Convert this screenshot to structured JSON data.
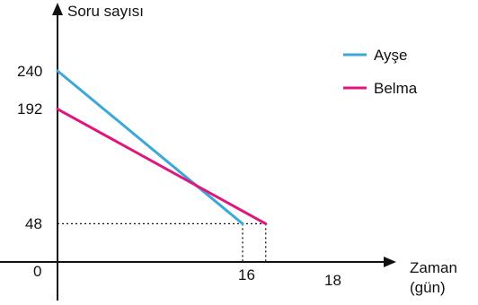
{
  "chart_data": {
    "type": "line",
    "ylabel": "Soru sayısı",
    "xlabel_line1": "Zaman",
    "xlabel_line2": "(gün)",
    "origin_label": "0",
    "y_ticks": [
      "240",
      "192",
      "48"
    ],
    "x_ticks": [
      "16",
      "18"
    ],
    "series": [
      {
        "name": "Ayşe",
        "color": "#3aa8d8",
        "points": [
          [
            0,
            240
          ],
          [
            16,
            48
          ]
        ]
      },
      {
        "name": "Belma",
        "color": "#e0157d",
        "points": [
          [
            0,
            192
          ],
          [
            18,
            48
          ]
        ]
      }
    ],
    "guides": [
      {
        "x": 16,
        "y": 48
      },
      {
        "x": 18,
        "y": 48
      }
    ],
    "legend_position": "top-right",
    "grid": false
  }
}
